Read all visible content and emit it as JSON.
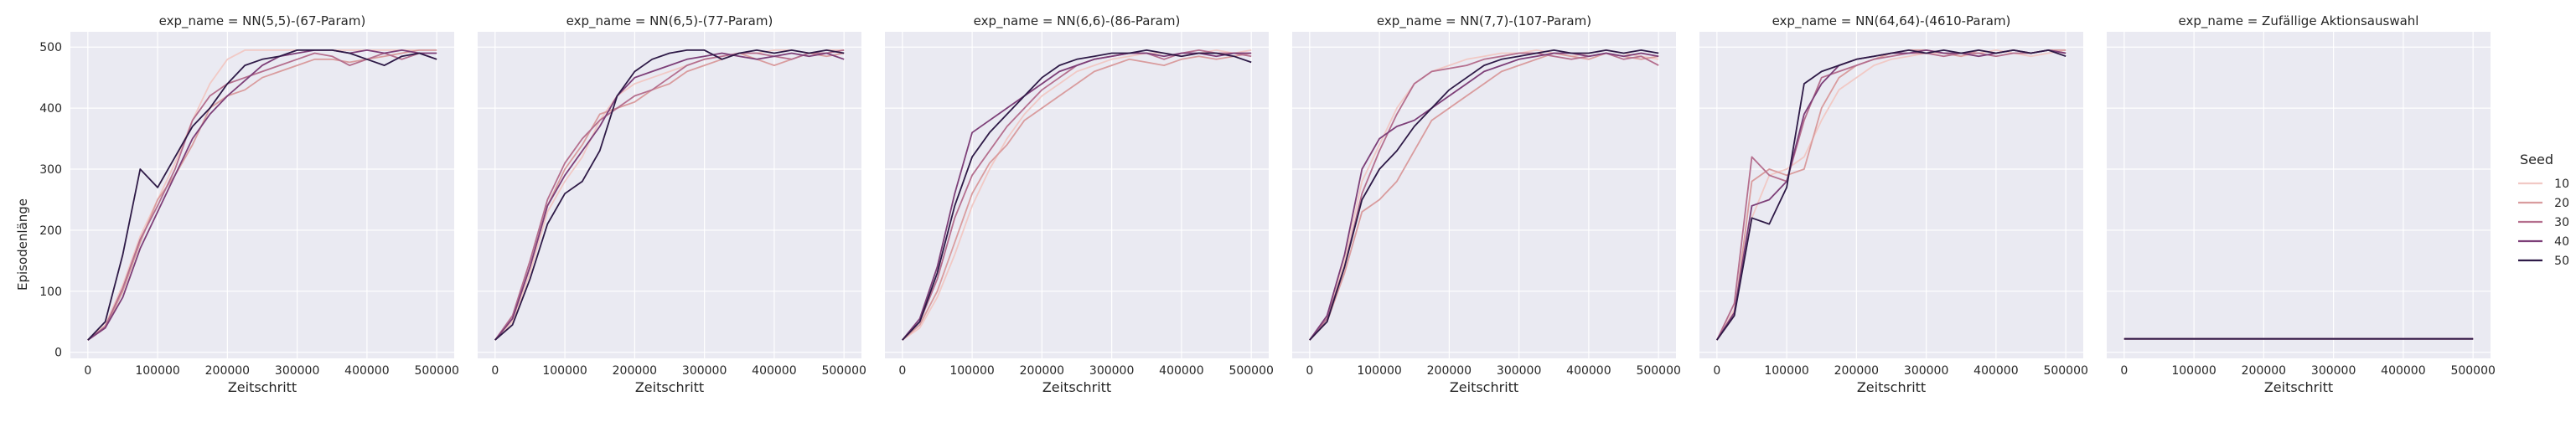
{
  "figure": {
    "ylabel": "Episodenlänge",
    "xlabel": "Zeitschritt",
    "legend_title": "Seed",
    "legend_position": "right"
  },
  "colors": {
    "panel_bg": "#eaeaf2",
    "grid": "#ffffff",
    "seeds": [
      "#f1c9c5",
      "#d99c9e",
      "#b56f8e",
      "#7d3f78",
      "#2e1a47"
    ]
  },
  "chart_data": [
    {
      "type": "line",
      "title": "exp_name = NN(5,5)-(67-Param)",
      "xlabel": "Zeitschritt",
      "ylabel": "Episodenlänge",
      "x": [
        0,
        25000,
        50000,
        75000,
        100000,
        125000,
        150000,
        175000,
        200000,
        225000,
        250000,
        275000,
        300000,
        325000,
        350000,
        375000,
        400000,
        425000,
        450000,
        475000,
        500000
      ],
      "xlim": [
        -25000,
        525000
      ],
      "ylim": [
        -10,
        525
      ],
      "xticks": [
        0,
        100000,
        200000,
        300000,
        400000,
        500000
      ],
      "yticks": [
        0,
        100,
        200,
        300,
        400,
        500
      ],
      "grid": true,
      "series": [
        {
          "name": "10",
          "values": [
            20,
            45,
            110,
            190,
            250,
            310,
            380,
            440,
            480,
            495,
            495,
            495,
            495,
            495,
            495,
            495,
            495,
            495,
            495,
            495,
            495
          ]
        },
        {
          "name": "20",
          "values": [
            20,
            40,
            100,
            180,
            250,
            290,
            340,
            400,
            420,
            430,
            450,
            460,
            470,
            480,
            480,
            475,
            480,
            485,
            490,
            495,
            495
          ]
        },
        {
          "name": "30",
          "values": [
            20,
            42,
            105,
            185,
            240,
            300,
            380,
            420,
            440,
            450,
            460,
            470,
            480,
            490,
            485,
            470,
            480,
            490,
            480,
            490,
            480
          ]
        },
        {
          "name": "40",
          "values": [
            20,
            40,
            90,
            170,
            230,
            290,
            350,
            390,
            420,
            445,
            470,
            485,
            490,
            495,
            495,
            490,
            495,
            490,
            495,
            490,
            490
          ]
        },
        {
          "name": "50",
          "values": [
            20,
            50,
            160,
            300,
            270,
            320,
            370,
            400,
            440,
            470,
            480,
            485,
            495,
            495,
            495,
            490,
            480,
            470,
            485,
            490,
            480
          ]
        }
      ]
    },
    {
      "type": "line",
      "title": "exp_name = NN(6,5)-(77-Param)",
      "xlabel": "Zeitschritt",
      "ylabel": "",
      "x": [
        0,
        25000,
        50000,
        75000,
        100000,
        125000,
        150000,
        175000,
        200000,
        225000,
        250000,
        275000,
        300000,
        325000,
        350000,
        375000,
        400000,
        425000,
        450000,
        475000,
        500000
      ],
      "xlim": [
        -25000,
        525000
      ],
      "ylim": [
        -10,
        525
      ],
      "xticks": [
        0,
        100000,
        200000,
        300000,
        400000,
        500000
      ],
      "yticks": [
        0,
        100,
        200,
        300,
        400,
        500
      ],
      "grid": true,
      "series": [
        {
          "name": "10",
          "values": [
            20,
            50,
            130,
            230,
            280,
            320,
            380,
            420,
            440,
            450,
            460,
            470,
            480,
            485,
            490,
            490,
            495,
            495,
            490,
            495,
            495
          ]
        },
        {
          "name": "20",
          "values": [
            20,
            55,
            140,
            240,
            300,
            340,
            390,
            400,
            410,
            430,
            440,
            460,
            470,
            480,
            490,
            480,
            470,
            480,
            490,
            485,
            490
          ]
        },
        {
          "name": "30",
          "values": [
            20,
            60,
            150,
            250,
            310,
            350,
            380,
            400,
            420,
            430,
            450,
            470,
            480,
            485,
            490,
            490,
            485,
            480,
            490,
            490,
            495
          ]
        },
        {
          "name": "40",
          "values": [
            20,
            55,
            140,
            240,
            290,
            330,
            370,
            420,
            450,
            460,
            470,
            480,
            485,
            490,
            485,
            480,
            485,
            490,
            485,
            490,
            480
          ]
        },
        {
          "name": "50",
          "values": [
            20,
            45,
            120,
            210,
            260,
            280,
            330,
            420,
            460,
            480,
            490,
            495,
            495,
            480,
            490,
            495,
            490,
            495,
            490,
            495,
            490
          ]
        }
      ]
    },
    {
      "type": "line",
      "title": "exp_name = NN(6,6)-(86-Param)",
      "xlabel": "Zeitschritt",
      "ylabel": "",
      "x": [
        0,
        25000,
        50000,
        75000,
        100000,
        125000,
        150000,
        175000,
        200000,
        225000,
        250000,
        275000,
        300000,
        325000,
        350000,
        375000,
        400000,
        425000,
        450000,
        475000,
        500000
      ],
      "xlim": [
        -25000,
        525000
      ],
      "ylim": [
        -10,
        525
      ],
      "xticks": [
        0,
        100000,
        200000,
        300000,
        400000,
        500000
      ],
      "yticks": [
        0,
        100,
        200,
        300,
        400,
        500
      ],
      "grid": true,
      "series": [
        {
          "name": "10",
          "values": [
            20,
            40,
            90,
            160,
            240,
            300,
            350,
            390,
            420,
            440,
            460,
            470,
            480,
            485,
            490,
            490,
            485,
            490,
            495,
            490,
            495
          ]
        },
        {
          "name": "20",
          "values": [
            20,
            45,
            100,
            180,
            260,
            310,
            340,
            380,
            400,
            420,
            440,
            460,
            470,
            480,
            475,
            470,
            480,
            485,
            480,
            485,
            490
          ]
        },
        {
          "name": "30",
          "values": [
            20,
            50,
            120,
            220,
            290,
            330,
            370,
            400,
            430,
            450,
            470,
            480,
            485,
            490,
            490,
            480,
            490,
            495,
            490,
            490,
            485
          ]
        },
        {
          "name": "40",
          "values": [
            20,
            55,
            140,
            260,
            360,
            380,
            400,
            420,
            440,
            460,
            470,
            480,
            485,
            490,
            490,
            485,
            490,
            490,
            485,
            490,
            490
          ]
        },
        {
          "name": "50",
          "values": [
            20,
            50,
            130,
            240,
            320,
            360,
            390,
            420,
            450,
            470,
            480,
            485,
            490,
            490,
            495,
            490,
            485,
            490,
            490,
            485,
            475
          ]
        }
      ]
    },
    {
      "type": "line",
      "title": "exp_name = NN(7,7)-(107-Param)",
      "xlabel": "Zeitschritt",
      "ylabel": "",
      "x": [
        0,
        25000,
        50000,
        75000,
        100000,
        125000,
        150000,
        175000,
        200000,
        225000,
        250000,
        275000,
        300000,
        325000,
        350000,
        375000,
        400000,
        425000,
        450000,
        475000,
        500000
      ],
      "xlim": [
        -25000,
        525000
      ],
      "ylim": [
        -10,
        525
      ],
      "xticks": [
        0,
        100000,
        200000,
        300000,
        400000,
        500000
      ],
      "yticks": [
        0,
        100,
        200,
        300,
        400,
        500
      ],
      "grid": true,
      "series": [
        {
          "name": "10",
          "values": [
            20,
            55,
            150,
            280,
            340,
            400,
            440,
            460,
            470,
            480,
            485,
            490,
            490,
            495,
            490,
            485,
            490,
            495,
            490,
            485,
            480
          ]
        },
        {
          "name": "20",
          "values": [
            20,
            50,
            130,
            230,
            250,
            280,
            330,
            380,
            400,
            420,
            440,
            460,
            470,
            480,
            490,
            485,
            480,
            490,
            485,
            480,
            485
          ]
        },
        {
          "name": "30",
          "values": [
            20,
            55,
            140,
            260,
            330,
            390,
            440,
            460,
            465,
            470,
            480,
            485,
            490,
            490,
            485,
            480,
            485,
            490,
            480,
            485,
            470
          ]
        },
        {
          "name": "40",
          "values": [
            20,
            60,
            160,
            300,
            350,
            370,
            380,
            400,
            420,
            440,
            460,
            470,
            480,
            485,
            490,
            490,
            485,
            490,
            485,
            490,
            485
          ]
        },
        {
          "name": "50",
          "values": [
            20,
            50,
            140,
            250,
            300,
            330,
            370,
            400,
            430,
            450,
            470,
            480,
            485,
            490,
            495,
            490,
            490,
            495,
            490,
            495,
            490
          ]
        }
      ]
    },
    {
      "type": "line",
      "title": "exp_name = NN(64,64)-(4610-Param)",
      "xlabel": "Zeitschritt",
      "ylabel": "",
      "x": [
        0,
        25000,
        50000,
        75000,
        100000,
        125000,
        150000,
        175000,
        200000,
        225000,
        250000,
        275000,
        300000,
        325000,
        350000,
        375000,
        400000,
        425000,
        450000,
        475000,
        500000
      ],
      "xlim": [
        -25000,
        525000
      ],
      "ylim": [
        -10,
        525
      ],
      "xticks": [
        0,
        100000,
        200000,
        300000,
        400000,
        500000
      ],
      "yticks": [
        0,
        100,
        200,
        300,
        400,
        500
      ],
      "grid": true,
      "series": [
        {
          "name": "10",
          "values": [
            20,
            70,
            220,
            290,
            300,
            320,
            380,
            430,
            450,
            470,
            480,
            485,
            490,
            490,
            485,
            490,
            495,
            490,
            485,
            490,
            495
          ]
        },
        {
          "name": "20",
          "values": [
            20,
            60,
            280,
            300,
            290,
            300,
            400,
            450,
            470,
            480,
            490,
            495,
            495,
            490,
            485,
            495,
            490,
            495,
            490,
            495,
            495
          ]
        },
        {
          "name": "30",
          "values": [
            20,
            80,
            320,
            290,
            280,
            380,
            450,
            460,
            470,
            480,
            485,
            490,
            490,
            485,
            490,
            490,
            485,
            490,
            490,
            495,
            490
          ]
        },
        {
          "name": "40",
          "values": [
            20,
            65,
            240,
            250,
            280,
            390,
            440,
            470,
            480,
            485,
            490,
            490,
            495,
            490,
            490,
            485,
            490,
            495,
            490,
            495,
            490
          ]
        },
        {
          "name": "50",
          "values": [
            20,
            60,
            220,
            210,
            270,
            440,
            460,
            470,
            480,
            485,
            490,
            495,
            490,
            495,
            490,
            495,
            490,
            495,
            490,
            495,
            485
          ]
        }
      ]
    },
    {
      "type": "line",
      "title": "exp_name = Zufällige Aktionsauswahl",
      "xlabel": "Zeitschritt",
      "ylabel": "",
      "x": [
        0,
        25000,
        50000,
        75000,
        100000,
        125000,
        150000,
        175000,
        200000,
        225000,
        250000,
        275000,
        300000,
        325000,
        350000,
        375000,
        400000,
        425000,
        450000,
        475000,
        500000
      ],
      "xlim": [
        -25000,
        525000
      ],
      "ylim": [
        -10,
        525
      ],
      "xticks": [
        0,
        100000,
        200000,
        300000,
        400000,
        500000
      ],
      "yticks": [
        0,
        100,
        200,
        300,
        400,
        500
      ],
      "grid": true,
      "series": [
        {
          "name": "10",
          "values": [
            22,
            22,
            22,
            22,
            22,
            22,
            22,
            22,
            22,
            22,
            22,
            22,
            22,
            22,
            22,
            22,
            22,
            22,
            22,
            22,
            22
          ]
        },
        {
          "name": "20",
          "values": [
            22,
            22,
            22,
            22,
            22,
            22,
            22,
            22,
            22,
            22,
            22,
            22,
            22,
            22,
            22,
            22,
            22,
            22,
            22,
            22,
            22
          ]
        },
        {
          "name": "30",
          "values": [
            22,
            22,
            22,
            22,
            22,
            22,
            22,
            22,
            22,
            22,
            22,
            22,
            22,
            22,
            22,
            22,
            22,
            22,
            22,
            22,
            22
          ]
        },
        {
          "name": "40",
          "values": [
            22,
            22,
            22,
            22,
            22,
            22,
            22,
            22,
            22,
            22,
            22,
            22,
            22,
            22,
            22,
            22,
            22,
            22,
            22,
            22,
            22
          ]
        },
        {
          "name": "50",
          "values": [
            22,
            22,
            22,
            22,
            22,
            22,
            22,
            22,
            22,
            22,
            22,
            22,
            22,
            22,
            22,
            22,
            22,
            22,
            22,
            22,
            22
          ]
        }
      ]
    }
  ]
}
